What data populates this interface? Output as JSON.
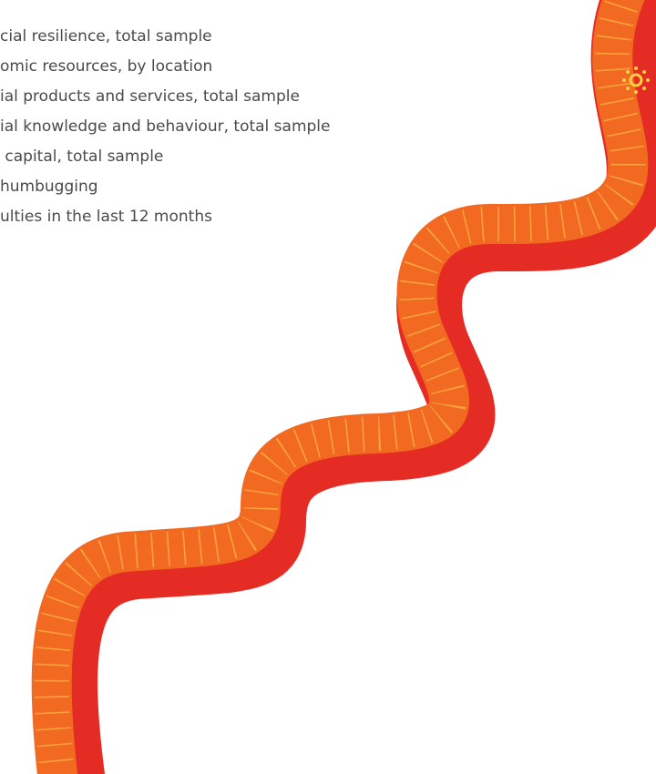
{
  "list": {
    "items": [
      "cial resilience, total sample",
      "omic resources, by location",
      "ial products and services, total sample",
      "ial knowledge and behaviour, total sample",
      " capital, total sample",
      "humbugging",
      "ulties in the last 12 months"
    ]
  }
}
